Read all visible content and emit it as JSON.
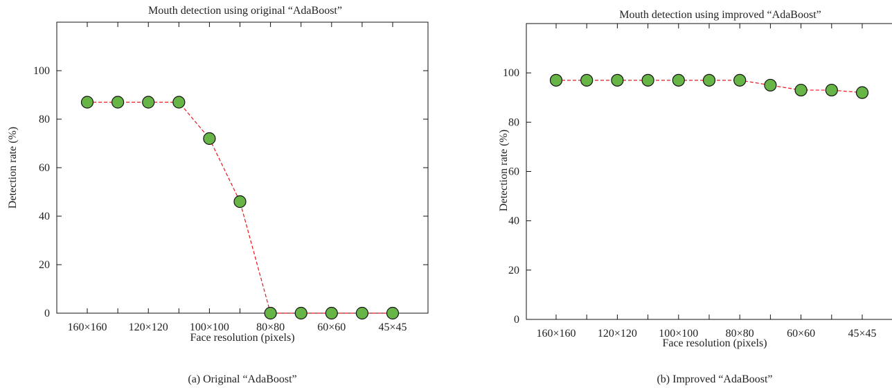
{
  "chart_data": [
    {
      "type": "line",
      "title": "Mouth detection using original “AdaBoost”",
      "xlabel": "Face resolution (pixels)",
      "ylabel": "Detection rate (%)",
      "caption": "(a)  Original “AdaBoost”",
      "x_tick_labels": [
        "160×160",
        "",
        "120×120",
        "",
        "100×100",
        "",
        "80×80",
        "",
        "60×60",
        "",
        "45×45"
      ],
      "y_ticks": [
        0,
        20,
        40,
        60,
        80,
        100
      ],
      "ylim": [
        0,
        120
      ],
      "grid": false,
      "values": [
        87,
        87,
        87,
        87,
        72,
        46,
        0,
        0,
        0,
        0,
        0
      ],
      "line_color": "#e8141c",
      "marker_color": "#66b546"
    },
    {
      "type": "line",
      "title": "Mouth detection using improved “AdaBoost”",
      "xlabel": "Face resolution (pixels)",
      "ylabel": "Detection rate (%)",
      "caption": "(b)  Improved “AdaBoost”",
      "x_tick_labels": [
        "160×160",
        "",
        "120×120",
        "",
        "100×100",
        "",
        "80×80",
        "",
        "60×60",
        "",
        "45×45"
      ],
      "y_ticks": [
        0,
        20,
        40,
        60,
        80,
        100
      ],
      "ylim": [
        0,
        120
      ],
      "grid": false,
      "values": [
        97,
        97,
        97,
        97,
        97,
        97,
        97,
        95,
        93,
        93,
        92
      ],
      "line_color": "#e8141c",
      "marker_color": "#66b546"
    }
  ]
}
